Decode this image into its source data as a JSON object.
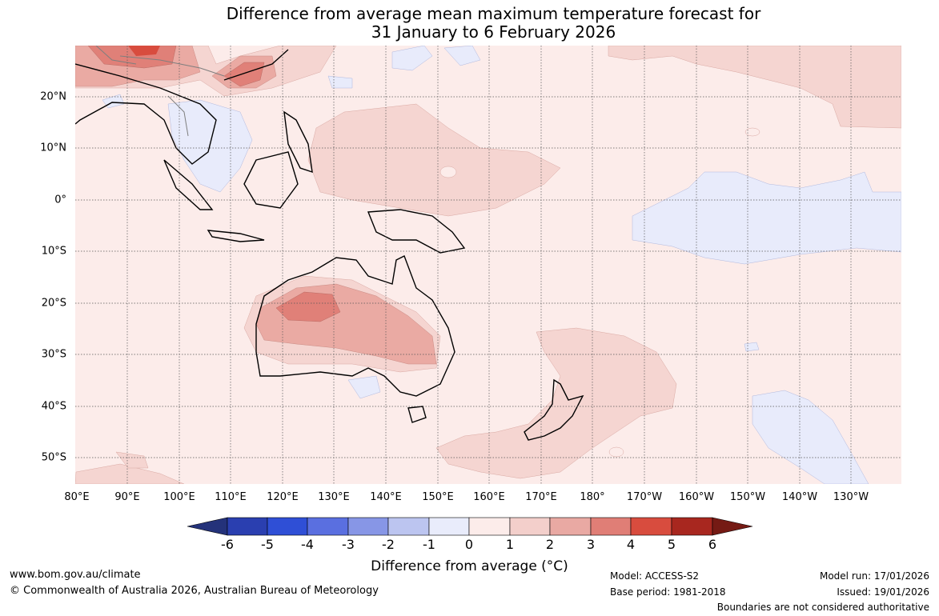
{
  "title": {
    "line1": "Difference from average mean maximum temperature forecast for",
    "line2": "31 January to 6 February 2026"
  },
  "map": {
    "lat_labels": [
      "20°N",
      "10°N",
      "0°",
      "10°S",
      "20°S",
      "30°S",
      "40°S",
      "50°S"
    ],
    "lon_labels": [
      "80°E",
      "90°E",
      "100°E",
      "110°E",
      "120°E",
      "130°E",
      "140°E",
      "150°E",
      "160°E",
      "170°E",
      "180°",
      "170°W",
      "160°W",
      "150°W",
      "140°W",
      "130°W"
    ]
  },
  "colorbar": {
    "ticks": [
      "-6",
      "-5",
      "-4",
      "-3",
      "-2",
      "-1",
      "0",
      "1",
      "2",
      "3",
      "4",
      "5",
      "6"
    ],
    "colors": [
      "#24327a",
      "#2a3fb0",
      "#2f4fd6",
      "#5a6fe0",
      "#8796e6",
      "#bcc5f0",
      "#e9ecfb",
      "#fcecea",
      "#f3cfcb",
      "#e9a9a3",
      "#e07e76",
      "#d84c3e",
      "#a8271f",
      "#751a14"
    ],
    "title": "Difference from average (°C)"
  },
  "footer": {
    "website": "www.bom.gov.au/climate",
    "copyright": "© Commonwealth of Australia 2026, Australian Bureau of Meteorology",
    "model": "Model: ACCESS-S2",
    "base_period": "Base period: 1981-2018",
    "model_run": "Model run: 17/01/2026",
    "issued": "Issued: 19/01/2026",
    "disclaimer": "Boundaries are not considered authoritative"
  }
}
